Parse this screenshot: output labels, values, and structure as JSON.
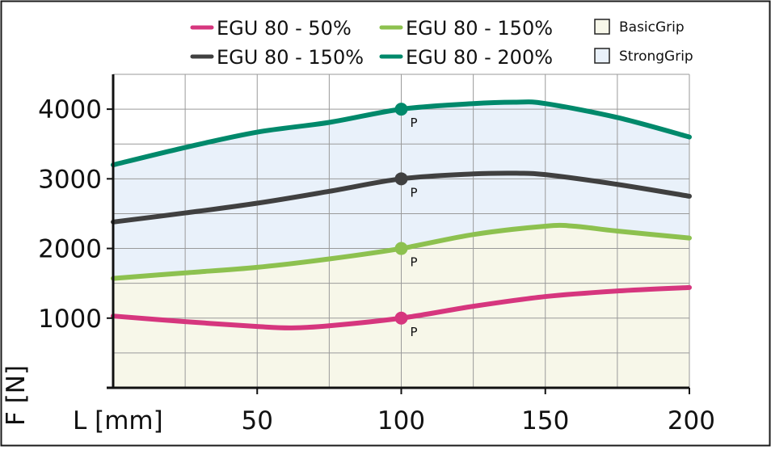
{
  "chart_data": {
    "type": "line",
    "xlabel": "L [mm]",
    "ylabel": "F [N]",
    "xlim": [
      0,
      200
    ],
    "ylim": [
      0,
      4500
    ],
    "grid": true,
    "legend_position": "top",
    "x_ticks": [
      50,
      100,
      150,
      200
    ],
    "x_tick_labels": [
      "50",
      "100",
      "150",
      "200"
    ],
    "y_ticks": [
      1000,
      2000,
      3000,
      4000
    ],
    "y_tick_labels": [
      "1000",
      "2000",
      "3000",
      "4000"
    ],
    "series": [
      {
        "name": "EGU 80 - 50%",
        "color": "#d6367e",
        "x": [
          0,
          25,
          50,
          62,
          75,
          100,
          125,
          150,
          175,
          200
        ],
        "y": [
          1030,
          950,
          880,
          860,
          890,
          1000,
          1170,
          1310,
          1390,
          1440
        ]
      },
      {
        "name": "EGU 80 - 150%",
        "color": "#404040",
        "x": [
          0,
          25,
          50,
          75,
          100,
          125,
          140,
          150,
          175,
          200
        ],
        "y": [
          2380,
          2510,
          2650,
          2820,
          3000,
          3070,
          3080,
          3060,
          2920,
          2750
        ]
      },
      {
        "name": "EGU 80 - 150%",
        "color": "#8dc14f",
        "x": [
          0,
          25,
          50,
          75,
          100,
          125,
          150,
          160,
          175,
          200
        ],
        "y": [
          1570,
          1650,
          1730,
          1850,
          2000,
          2200,
          2320,
          2320,
          2250,
          2150
        ]
      },
      {
        "name": "EGU 80 - 200%",
        "color": "#00896b",
        "x": [
          0,
          25,
          50,
          75,
          100,
          125,
          140,
          150,
          175,
          200
        ],
        "y": [
          3200,
          3450,
          3670,
          3810,
          4000,
          4080,
          4100,
          4080,
          3880,
          3600
        ]
      }
    ],
    "points": [
      {
        "series": 0,
        "x": 100,
        "y": 1000,
        "label": "P"
      },
      {
        "series": 2,
        "x": 100,
        "y": 2000,
        "label": "P"
      },
      {
        "series": 1,
        "x": 100,
        "y": 3000,
        "label": "P"
      },
      {
        "series": 3,
        "x": 100,
        "y": 4000,
        "label": "P"
      }
    ],
    "areas": [
      {
        "name": "BasicGrip",
        "color": "#f7f7e9",
        "upper_series": 2
      },
      {
        "name": "StrongGrip",
        "color": "#e9f1fa",
        "lower_series": 2,
        "upper_series": 3
      }
    ]
  }
}
